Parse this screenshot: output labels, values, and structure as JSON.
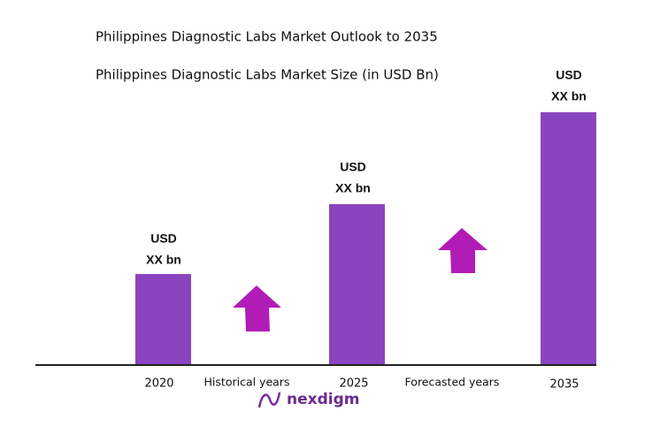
{
  "header": {
    "title": "Philippines Diagnostic Labs Market Outlook to 2035",
    "subtitle": "Philippines Diagnostic Labs Market Size (in USD Bn)"
  },
  "bars": [
    {
      "year": "2020",
      "label": [
        "USD",
        "XX bn"
      ]
    },
    {
      "year": "2025",
      "label": [
        "USD",
        "XX bn"
      ]
    },
    {
      "year": "2035",
      "label": [
        "USD",
        "XX bn"
      ]
    }
  ],
  "periods": [
    "Historical years",
    "Forecasted years"
  ],
  "logo": "nexdigm"
}
